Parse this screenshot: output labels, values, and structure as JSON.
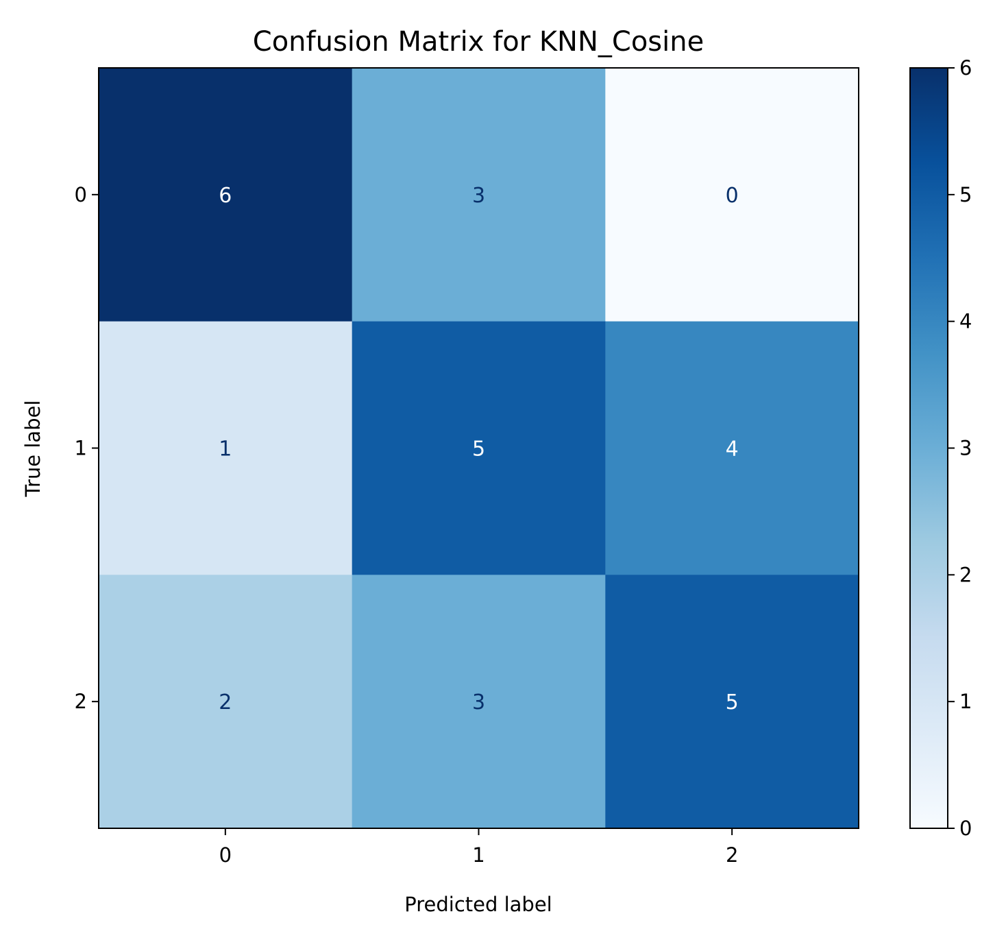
{
  "chart_data": {
    "type": "heatmap",
    "title": "Confusion Matrix for KNN_Cosine",
    "xlabel": "Predicted label",
    "ylabel": "True label",
    "x_categories": [
      "0",
      "1",
      "2"
    ],
    "y_categories": [
      "0",
      "1",
      "2"
    ],
    "matrix": [
      [
        6,
        3,
        0
      ],
      [
        1,
        5,
        4
      ],
      [
        2,
        3,
        5
      ]
    ],
    "colormap": "Blues",
    "colorbar": {
      "min": 0,
      "max": 6,
      "ticks": [
        "0",
        "1",
        "2",
        "3",
        "4",
        "5",
        "6"
      ]
    },
    "colors": {
      "light_text": "#ffffff",
      "dark_text": "#08306b"
    }
  }
}
